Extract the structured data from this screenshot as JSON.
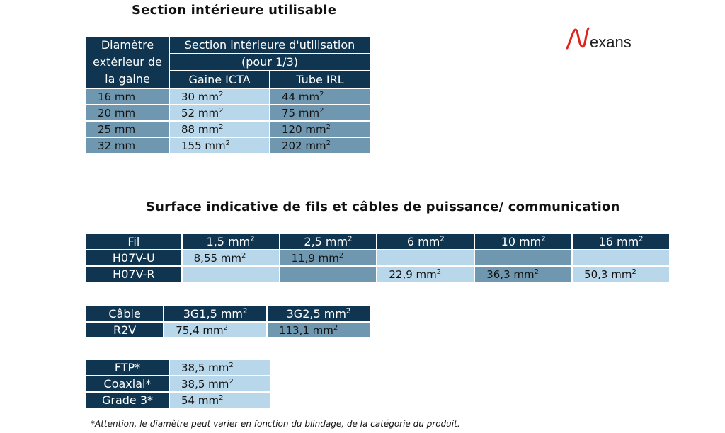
{
  "logo": {
    "text": "Nexans",
    "color": "#e2231a"
  },
  "section1": {
    "title": "Section intérieure utilisable",
    "header": {
      "col1": [
        "Diamètre",
        "extérieur de",
        "la gaine"
      ],
      "group": [
        "Section intérieure d'utilisation",
        "(pour 1/3)"
      ],
      "col2": "Gaine ICTA",
      "col3": "Tube IRL"
    },
    "rows": [
      [
        "16 mm",
        "30 mm²",
        "44 mm²"
      ],
      [
        "20 mm",
        "52 mm²",
        "75 mm²"
      ],
      [
        "25 mm",
        "88 mm²",
        "120 mm²"
      ],
      [
        "32 mm",
        "155 mm²",
        "202 mm²"
      ]
    ]
  },
  "section2": {
    "title": "Surface indicative de fils et câbles de puissance/ communication",
    "fil": {
      "header": [
        "Fil",
        "1,5 mm²",
        "2,5 mm²",
        "6 mm²",
        "10 mm²",
        "16 mm²"
      ],
      "rows": [
        [
          "H07V-U",
          "8,55 mm²",
          "11,9 mm²",
          "",
          "",
          ""
        ],
        [
          "H07V-R",
          "",
          "",
          "22,9 mm²",
          "36,3 mm²",
          "50,3 mm²"
        ]
      ]
    },
    "cable": {
      "header": [
        "Câble",
        "3G1,5 mm²",
        "3G2,5 mm²"
      ],
      "rows": [
        [
          "R2V",
          "75,4 mm²",
          "113,1 mm²"
        ]
      ]
    },
    "comm": {
      "rows": [
        [
          "FTP*",
          "38,5 mm²"
        ],
        [
          "Coaxial*",
          "38,5 mm²"
        ],
        [
          "Grade 3*",
          "54 mm²"
        ]
      ]
    },
    "footnote": "*Attention, le diamètre peut varier en fonction du blindage, de la catégorie du produit."
  },
  "colors": {
    "header": "#0f3550",
    "medium": "#7097b0",
    "light": "#b8d7ea"
  }
}
